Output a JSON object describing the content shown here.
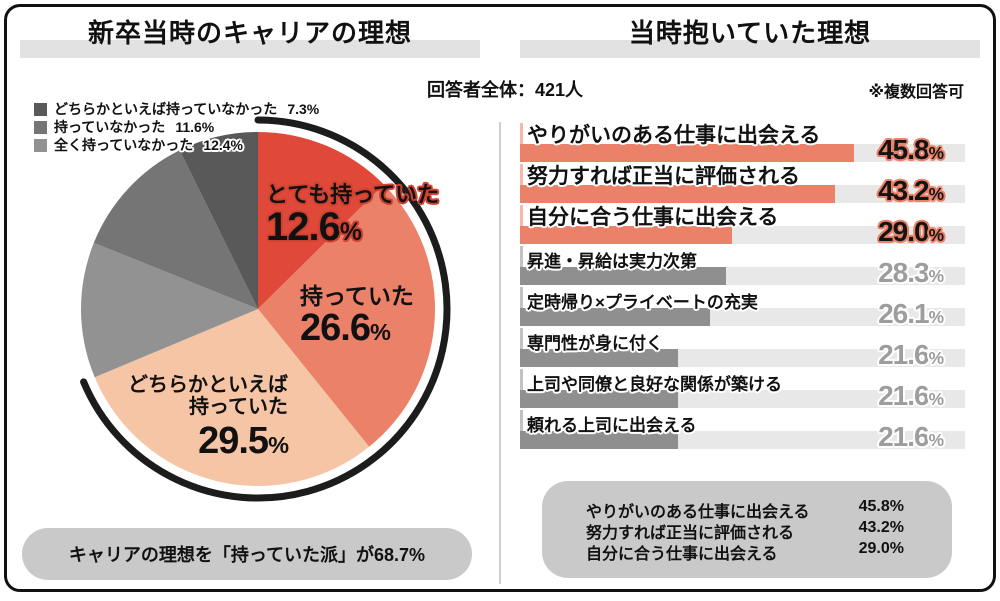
{
  "header": {
    "respondents": "回答者全体：421人",
    "note": "※複数回答可"
  },
  "left_panel": {
    "title": "新卒当時のキャリアの理想",
    "caption": "キャリアの理想を「持っていた派」が68.7%"
  },
  "right_panel": {
    "title": "当時抱いていた理想",
    "summary": [
      {
        "label": "やりがいのある仕事に出会える",
        "value": "45.8%"
      },
      {
        "label": "努力すれば正当に評価される",
        "value": "43.2%"
      },
      {
        "label": "自分に合う仕事に出会える",
        "value": "29.0%"
      }
    ]
  },
  "chart_data": [
    {
      "type": "pie",
      "title": "新卒当時のキャリアの理想",
      "direction": "clockwise",
      "start_angle_deg": 0,
      "slices": [
        {
          "label": "とても持っていた",
          "value": 12.6,
          "value_label": "12.6%",
          "color": "#e0493a"
        },
        {
          "label": "持っていた",
          "value": 26.6,
          "value_label": "26.6%",
          "color": "#ea8168"
        },
        {
          "label": "どちらかといえば持っていた",
          "label_lines": [
            "どちらかといえば",
            "持っていた"
          ],
          "value": 29.5,
          "value_label": "29.5%",
          "color": "#f6c5a5"
        },
        {
          "label": "全く持っていなかった",
          "value": 12.4,
          "value_label": "12.4%",
          "color": "#929292"
        },
        {
          "label": "持っていなかった",
          "value": 11.6,
          "value_label": "11.6%",
          "color": "#757575"
        },
        {
          "label": "どちらかといえば持っていなかった",
          "value": 7.3,
          "value_label": "7.3%",
          "color": "#595959"
        }
      ],
      "highlight_arc": {
        "sweep_pct": 68.7,
        "color": "#1c1c1c",
        "covers": "とても持っていた＋持っていた＋どちらかといえば持っていた"
      },
      "annotation": "キャリアの理想を「持っていた派」が68.7%"
    },
    {
      "type": "bar",
      "title": "当時抱いていた理想",
      "orientation": "horizontal",
      "xlim": [
        0,
        61
      ],
      "grid": false,
      "highlight_top_count": 3,
      "colors": {
        "highlight": "#ea8168",
        "normal": "#8f8f8f",
        "track": "#e8e8e8"
      },
      "categories": [
        "やりがいのある仕事に出会える",
        "努力すれば正当に評価される",
        "自分に合う仕事に出会える",
        "昇進・昇給は実力次第",
        "定時帰り×プライベートの充実",
        "専門性が身に付く",
        "上司や同僚と良好な関係が築ける",
        "頼れる上司に出会える"
      ],
      "values": [
        45.8,
        43.2,
        29.0,
        28.3,
        26.1,
        21.6,
        21.6,
        21.6
      ],
      "value_labels": [
        "45.8%",
        "43.2%",
        "29.0%",
        "28.3%",
        "26.1%",
        "21.6%",
        "21.6%",
        "21.6%"
      ]
    }
  ]
}
